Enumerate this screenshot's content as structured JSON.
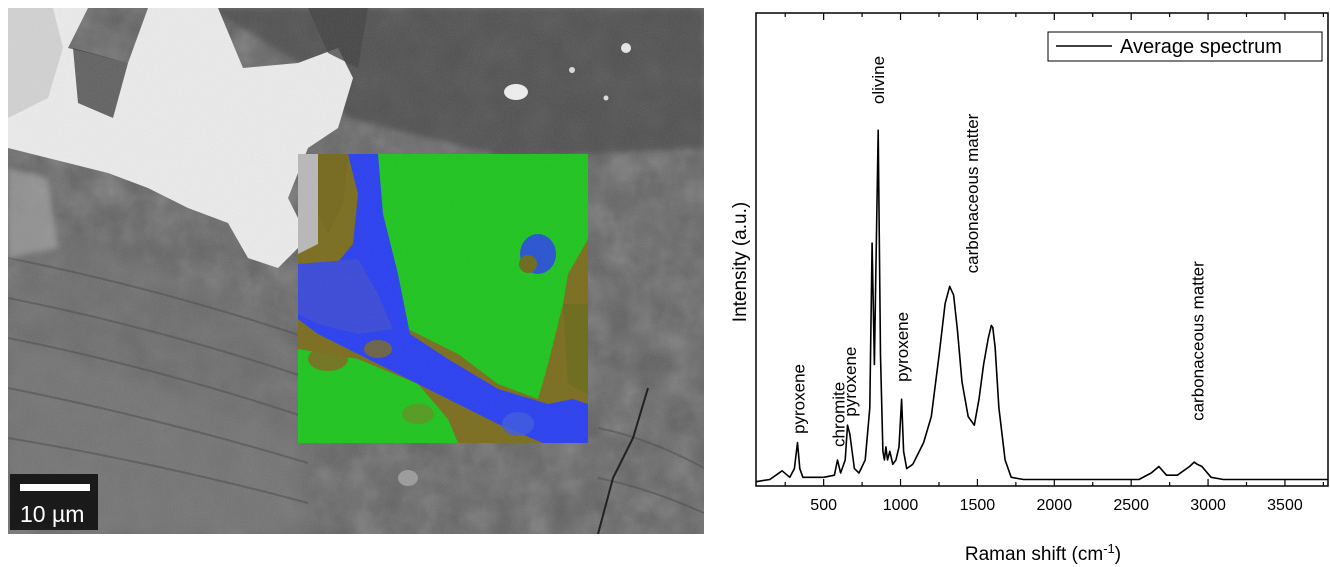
{
  "micrograph": {
    "scale_bar_label": "10 µm"
  },
  "chart_data": {
    "type": "line",
    "xlabel_main": "Raman shift (cm",
    "xlabel_sup": "-1",
    "xlabel_close": ")",
    "ylabel": "Intensity (a.u.)",
    "xlim": [
      60,
      3780
    ],
    "ylim": [
      0,
      1.09
    ],
    "xticks": [
      500,
      1000,
      1500,
      2000,
      2500,
      3000,
      3500
    ],
    "legend": {
      "label": "Average spectrum",
      "placement": "top-right"
    },
    "series": [
      {
        "name": "Average spectrum",
        "x": [
          60,
          150,
          230,
          280,
          310,
          330,
          345,
          365,
          400,
          500,
          570,
          590,
          610,
          640,
          655,
          670,
          685,
          700,
          730,
          770,
          800,
          815,
          830,
          840,
          855,
          870,
          885,
          895,
          905,
          915,
          930,
          950,
          970,
          990,
          1007,
          1020,
          1040,
          1080,
          1150,
          1200,
          1250,
          1290,
          1320,
          1345,
          1370,
          1400,
          1440,
          1480,
          1510,
          1540,
          1570,
          1590,
          1600,
          1615,
          1640,
          1680,
          1720,
          1800,
          2000,
          2300,
          2550,
          2630,
          2680,
          2730,
          2800,
          2880,
          2910,
          2930,
          2960,
          3020,
          3100,
          3300,
          3600,
          3780
        ],
        "values": [
          0.01,
          0.015,
          0.035,
          0.02,
          0.04,
          0.1,
          0.04,
          0.02,
          0.02,
          0.02,
          0.025,
          0.06,
          0.03,
          0.06,
          0.14,
          0.12,
          0.08,
          0.04,
          0.03,
          0.06,
          0.18,
          0.56,
          0.28,
          0.5,
          0.82,
          0.3,
          0.08,
          0.06,
          0.09,
          0.06,
          0.08,
          0.05,
          0.06,
          0.09,
          0.2,
          0.08,
          0.04,
          0.05,
          0.1,
          0.16,
          0.3,
          0.42,
          0.46,
          0.44,
          0.36,
          0.24,
          0.16,
          0.14,
          0.2,
          0.28,
          0.34,
          0.37,
          0.365,
          0.32,
          0.18,
          0.06,
          0.02,
          0.015,
          0.015,
          0.015,
          0.015,
          0.03,
          0.045,
          0.025,
          0.025,
          0.045,
          0.055,
          0.05,
          0.045,
          0.02,
          0.015,
          0.015,
          0.015,
          0.015
        ]
      }
    ],
    "annotations": [
      {
        "text": "pyroxene",
        "x": 335,
        "y": 0.12
      },
      {
        "text": "chromite",
        "x": 598,
        "y": 0.09
      },
      {
        "text": "pyroxene",
        "x": 670,
        "y": 0.16
      },
      {
        "text": "olivine",
        "x": 855,
        "y": 0.88
      },
      {
        "text": "pyroxene",
        "x": 1008,
        "y": 0.24
      },
      {
        "text": "carbonaceous matter",
        "x": 1465,
        "y": 0.49
      },
      {
        "text": "carbonaceous matter",
        "x": 2930,
        "y": 0.15
      }
    ]
  }
}
